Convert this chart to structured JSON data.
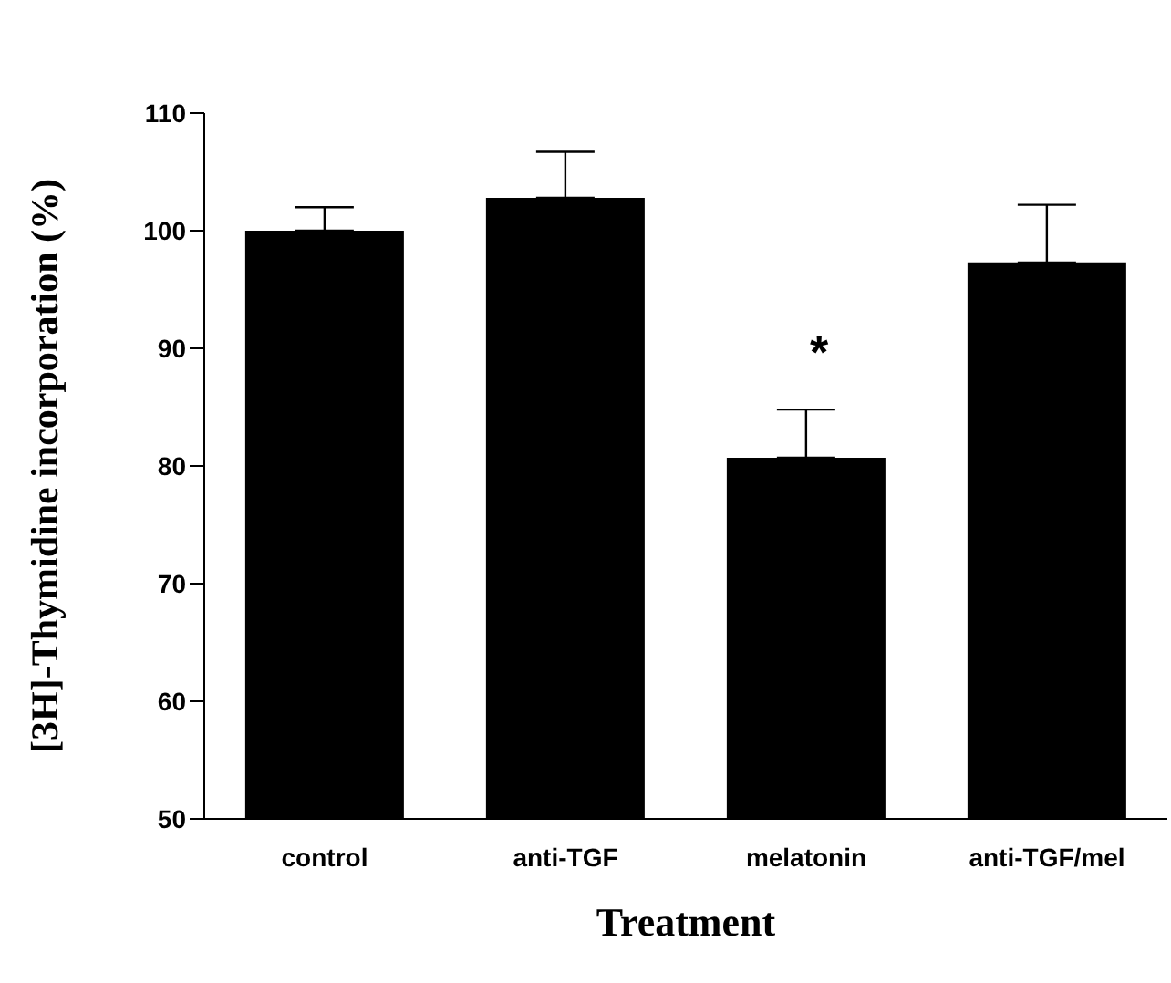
{
  "chart_data": {
    "type": "bar",
    "xlabel": "Treatment",
    "ylabel": "[3H]-Thymidine incorporation (%)",
    "categories": [
      "control",
      "anti-TGF",
      "melatonin",
      "anti-TGF/mel"
    ],
    "values": [
      100,
      102.8,
      80.7,
      97.3
    ],
    "errors": [
      [
        100,
        102
      ],
      [
        102.8,
        106.7
      ],
      [
        80.7,
        84.8
      ],
      [
        97.3,
        102.2
      ]
    ],
    "color": "#000000",
    "ylim": [
      50,
      110
    ],
    "yticks": [
      50,
      60,
      70,
      80,
      90,
      100,
      110
    ],
    "annotations": [
      "*"
    ]
  }
}
